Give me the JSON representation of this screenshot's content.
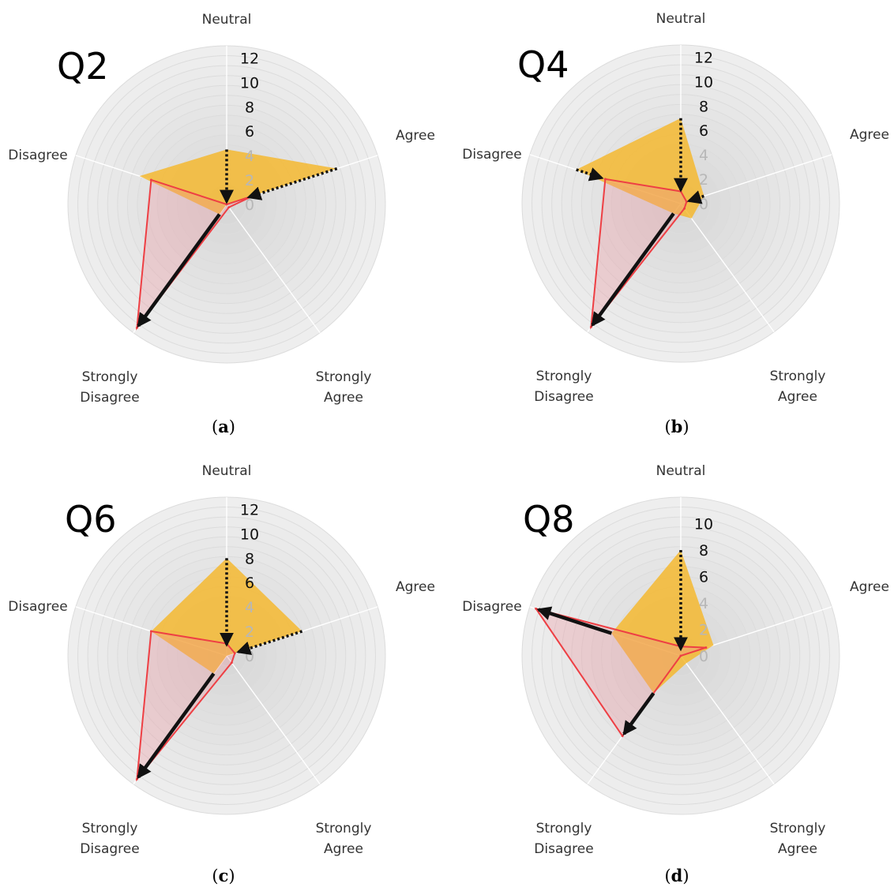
{
  "colors": {
    "ring": "#eeeeee",
    "ring_line": "#dcdcdc",
    "center": "#d6d6d6",
    "spoke": "#ffffff",
    "after_fill": "#f5b72a",
    "after_fill_opacity": 0.82,
    "before_line": "#ee3f44",
    "before_fill": "#f08e98",
    "before_fill_opacity": 0.3,
    "arrow": "#111111"
  },
  "chart_data": [
    {
      "type": "radar",
      "title": "Q2",
      "caption_letter": "a",
      "caption": "(a)",
      "axes": [
        "Neutral",
        "Agree",
        "Strongly Agree",
        "Strongly Disagree",
        "Disagree"
      ],
      "ticks": [
        "0",
        "2",
        "4",
        "6",
        "8",
        "10",
        "12"
      ],
      "rmax": 13,
      "series": [
        {
          "values": [
            4.5,
            9.5,
            0,
            1,
            7.5
          ]
        },
        {
          "values": [
            0,
            2.3,
            0.3,
            12.5,
            6.5
          ]
        }
      ],
      "arrows": [
        {
          "axis": "Neutral",
          "from": 4.5,
          "to": 0.2,
          "style": "dotted"
        },
        {
          "axis": "Agree",
          "from": 9.5,
          "to": 1.9,
          "style": "dotted"
        },
        {
          "axis": "Strongly Disagree",
          "from": 1,
          "to": 12.3,
          "style": "solid"
        }
      ]
    },
    {
      "type": "radar",
      "title": "Q4",
      "caption_letter": "b",
      "caption": "(b)",
      "axes": [
        "Neutral",
        "Agree",
        "Strongly Agree",
        "Strongly Disagree",
        "Disagree"
      ],
      "ticks": [
        "0",
        "2",
        "4",
        "6",
        "8",
        "10",
        "12"
      ],
      "rmax": 13,
      "series": [
        {
          "values": [
            7,
            2,
            1.5,
            1,
            9
          ]
        },
        {
          "values": [
            1,
            0.5,
            0.5,
            12.5,
            6.5
          ]
        }
      ],
      "arrows": [
        {
          "axis": "Neutral",
          "from": 7,
          "to": 1.1,
          "style": "dotted"
        },
        {
          "axis": "Agree",
          "from": 2,
          "to": 0.7,
          "style": "dotted"
        },
        {
          "axis": "Disagree",
          "from": 9,
          "to": 6.8,
          "style": "dotted"
        },
        {
          "axis": "Strongly Disagree",
          "from": 1,
          "to": 12.3,
          "style": "solid"
        }
      ]
    },
    {
      "type": "radar",
      "title": "Q6",
      "caption_letter": "c",
      "caption": "(c)",
      "axes": [
        "Neutral",
        "Agree",
        "Strongly Agree",
        "Strongly Disagree",
        "Disagree"
      ],
      "ticks": [
        "0",
        "2",
        "4",
        "6",
        "8",
        "10",
        "12"
      ],
      "rmax": 13,
      "series": [
        {
          "values": [
            8,
            6.5,
            0,
            1.8,
            6.5
          ]
        },
        {
          "values": [
            1,
            0.7,
            0.7,
            12.5,
            6.5
          ]
        }
      ],
      "arrows": [
        {
          "axis": "Neutral",
          "from": 8,
          "to": 0.9,
          "style": "dotted"
        },
        {
          "axis": "Agree",
          "from": 6.5,
          "to": 1,
          "style": "dotted"
        },
        {
          "axis": "Strongly Disagree",
          "from": 1.8,
          "to": 12.3,
          "style": "solid"
        }
      ]
    },
    {
      "type": "radar",
      "title": "Q8",
      "caption_letter": "d",
      "caption": "(d)",
      "axes": [
        "Neutral",
        "Agree",
        "Strongly Agree",
        "Strongly Disagree",
        "Disagree"
      ],
      "ticks": [
        "0",
        "2",
        "4",
        "6",
        "8",
        "10"
      ],
      "rmax": 12,
      "series": [
        {
          "values": [
            8,
            2.6,
            0.7,
            3.5,
            5.5
          ]
        },
        {
          "values": [
            0.7,
            2,
            0,
            7.5,
            11.5
          ]
        }
      ],
      "arrows": [
        {
          "axis": "Neutral",
          "from": 8,
          "to": 0.5,
          "style": "dotted"
        },
        {
          "axis": "Disagree",
          "from": 5.5,
          "to": 11.3,
          "style": "solid"
        },
        {
          "axis": "Strongly Disagree",
          "from": 3.5,
          "to": 7.3,
          "style": "solid"
        }
      ]
    }
  ]
}
